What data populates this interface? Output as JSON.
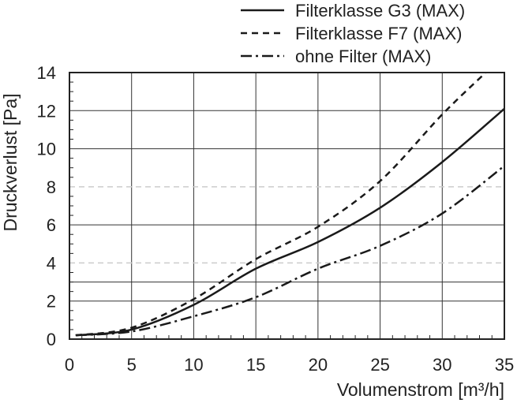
{
  "chart_data": {
    "type": "line",
    "xlabel": "Volumenstrom [m³/h]",
    "ylabel": "Druckverlust [Pa]",
    "xlim": [
      0,
      35
    ],
    "ylim": [
      0,
      14
    ],
    "x_ticks": [
      0,
      5,
      10,
      15,
      20,
      25,
      30,
      35
    ],
    "y_ticks": [
      0,
      2,
      4,
      6,
      8,
      10,
      12,
      14
    ],
    "grid": true,
    "legend_position": "top-right, outside plot",
    "series": [
      {
        "name": "Filterklasse G3 (MAX)",
        "dash": "solid",
        "x": [
          0.5,
          5,
          10,
          15,
          20,
          25,
          30,
          35
        ],
        "y": [
          0.2,
          0.5,
          1.8,
          3.7,
          5.1,
          6.9,
          9.3,
          12.1
        ]
      },
      {
        "name": "Filterklasse F7 (MAX)",
        "dash": "dashed",
        "x": [
          0.5,
          5,
          10,
          15,
          20,
          25,
          30,
          33.5
        ],
        "y": [
          0.2,
          0.6,
          2.1,
          4.2,
          5.9,
          8.3,
          11.8,
          14
        ]
      },
      {
        "name": "ohne Filter (MAX)",
        "dash": "dashdot",
        "x": [
          0.5,
          5,
          10,
          15,
          20,
          25,
          30,
          35
        ],
        "y": [
          0.2,
          0.4,
          1.2,
          2.2,
          3.7,
          4.9,
          6.6,
          9.1
        ]
      }
    ]
  }
}
